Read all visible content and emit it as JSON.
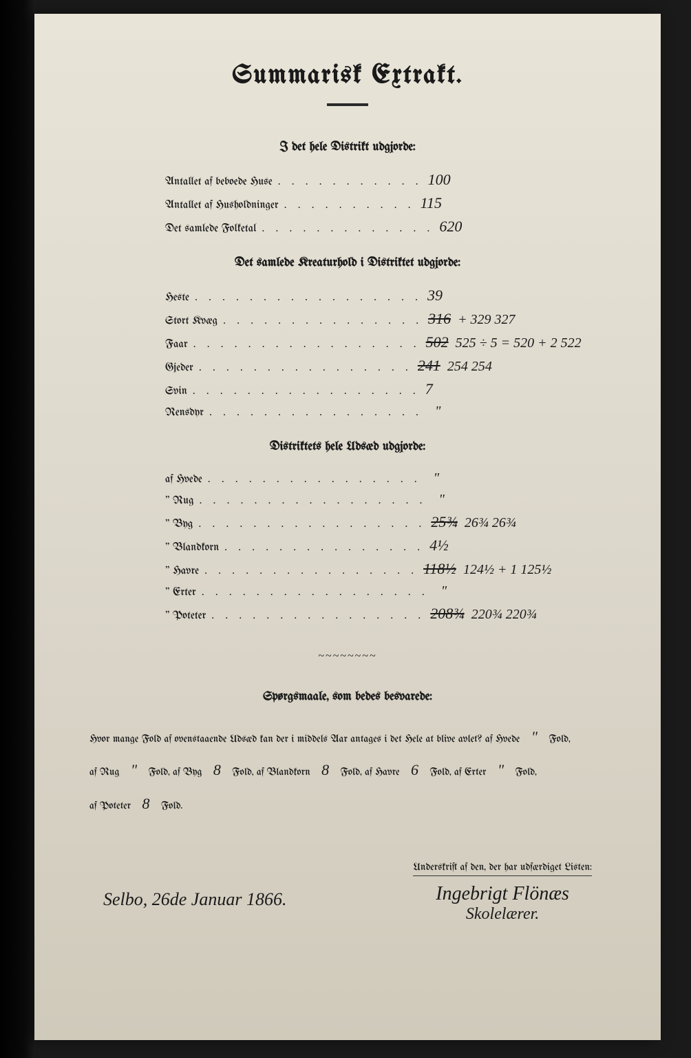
{
  "title": "Summarisk Extrakt.",
  "section1": {
    "heading": "I det hele Distrikt udgjorde:",
    "rows": [
      {
        "label": "Antallet af beboede Huse",
        "value": "100"
      },
      {
        "label": "Antallet af Husholdninger",
        "value": "115"
      },
      {
        "label": "Det samlede Folketal",
        "value": "620"
      }
    ]
  },
  "section2": {
    "heading": "Det samlede Kreaturhold i Distriktet udgjorde:",
    "rows": [
      {
        "label": "Heste",
        "value": "39",
        "annot": ""
      },
      {
        "label": "Stort Kvæg",
        "value": "316",
        "struck": true,
        "annot": "+ 329  327"
      },
      {
        "label": "Faar",
        "value": "502",
        "struck": true,
        "annot": "525 ÷ 5 = 520 + 2  522"
      },
      {
        "label": "Gjeder",
        "value": "241",
        "struck": true,
        "annot": "254  254"
      },
      {
        "label": "Svin",
        "value": "7",
        "annot": ""
      },
      {
        "label": "Rensdyr",
        "value": "",
        "annot": "\""
      }
    ]
  },
  "section3": {
    "heading": "Distriktets hele Udsæd udgjorde:",
    "rows": [
      {
        "label": "af Hvede",
        "value": "",
        "annot": "\""
      },
      {
        "label": "\" Rug",
        "value": "",
        "annot": "\""
      },
      {
        "label": "\" Byg",
        "value": "25¾",
        "struck": true,
        "annot": "26¾  26¾"
      },
      {
        "label": "\" Blandkorn",
        "value": "4½",
        "annot": ""
      },
      {
        "label": "\" Havre",
        "value": "118½",
        "struck": true,
        "annot": "124½ + 1  125½"
      },
      {
        "label": "\" Erter",
        "value": "",
        "annot": "\""
      },
      {
        "label": "\" Poteter",
        "value": "208¾",
        "struck": true,
        "annot": "220¾     220¾"
      }
    ]
  },
  "questions": {
    "heading": "Spørgsmaale, som bedes besvarede:",
    "line1_a": "Hvor mange Fold af ovenstaaende Udsæd kan der i middels Aar antages i det Hele at blive avlet?",
    "hvede_lbl": "af Hvede",
    "hvede_val": "\"",
    "fold": "Fold,",
    "rug_lbl": "af Rug",
    "rug_val": "\"",
    "byg_lbl": "Fold, af Byg",
    "byg_val": "8",
    "bland_lbl": "Fold, af Blandkorn",
    "bland_val": "8",
    "havre_lbl": "Fold, af Havre",
    "havre_val": "6",
    "erter_lbl": "Fold, af Erter",
    "erter_val": "\"",
    "poteter_lbl": "af Poteter",
    "poteter_val": "8",
    "fold_end": "Fold."
  },
  "signature": {
    "place_date": "Selbo, 26de Januar 1866.",
    "attest_label": "Underskrift af den, der har udfærdiget Listen:",
    "name": "Ingebrigt Flönæs",
    "role": "Skolelærer."
  }
}
